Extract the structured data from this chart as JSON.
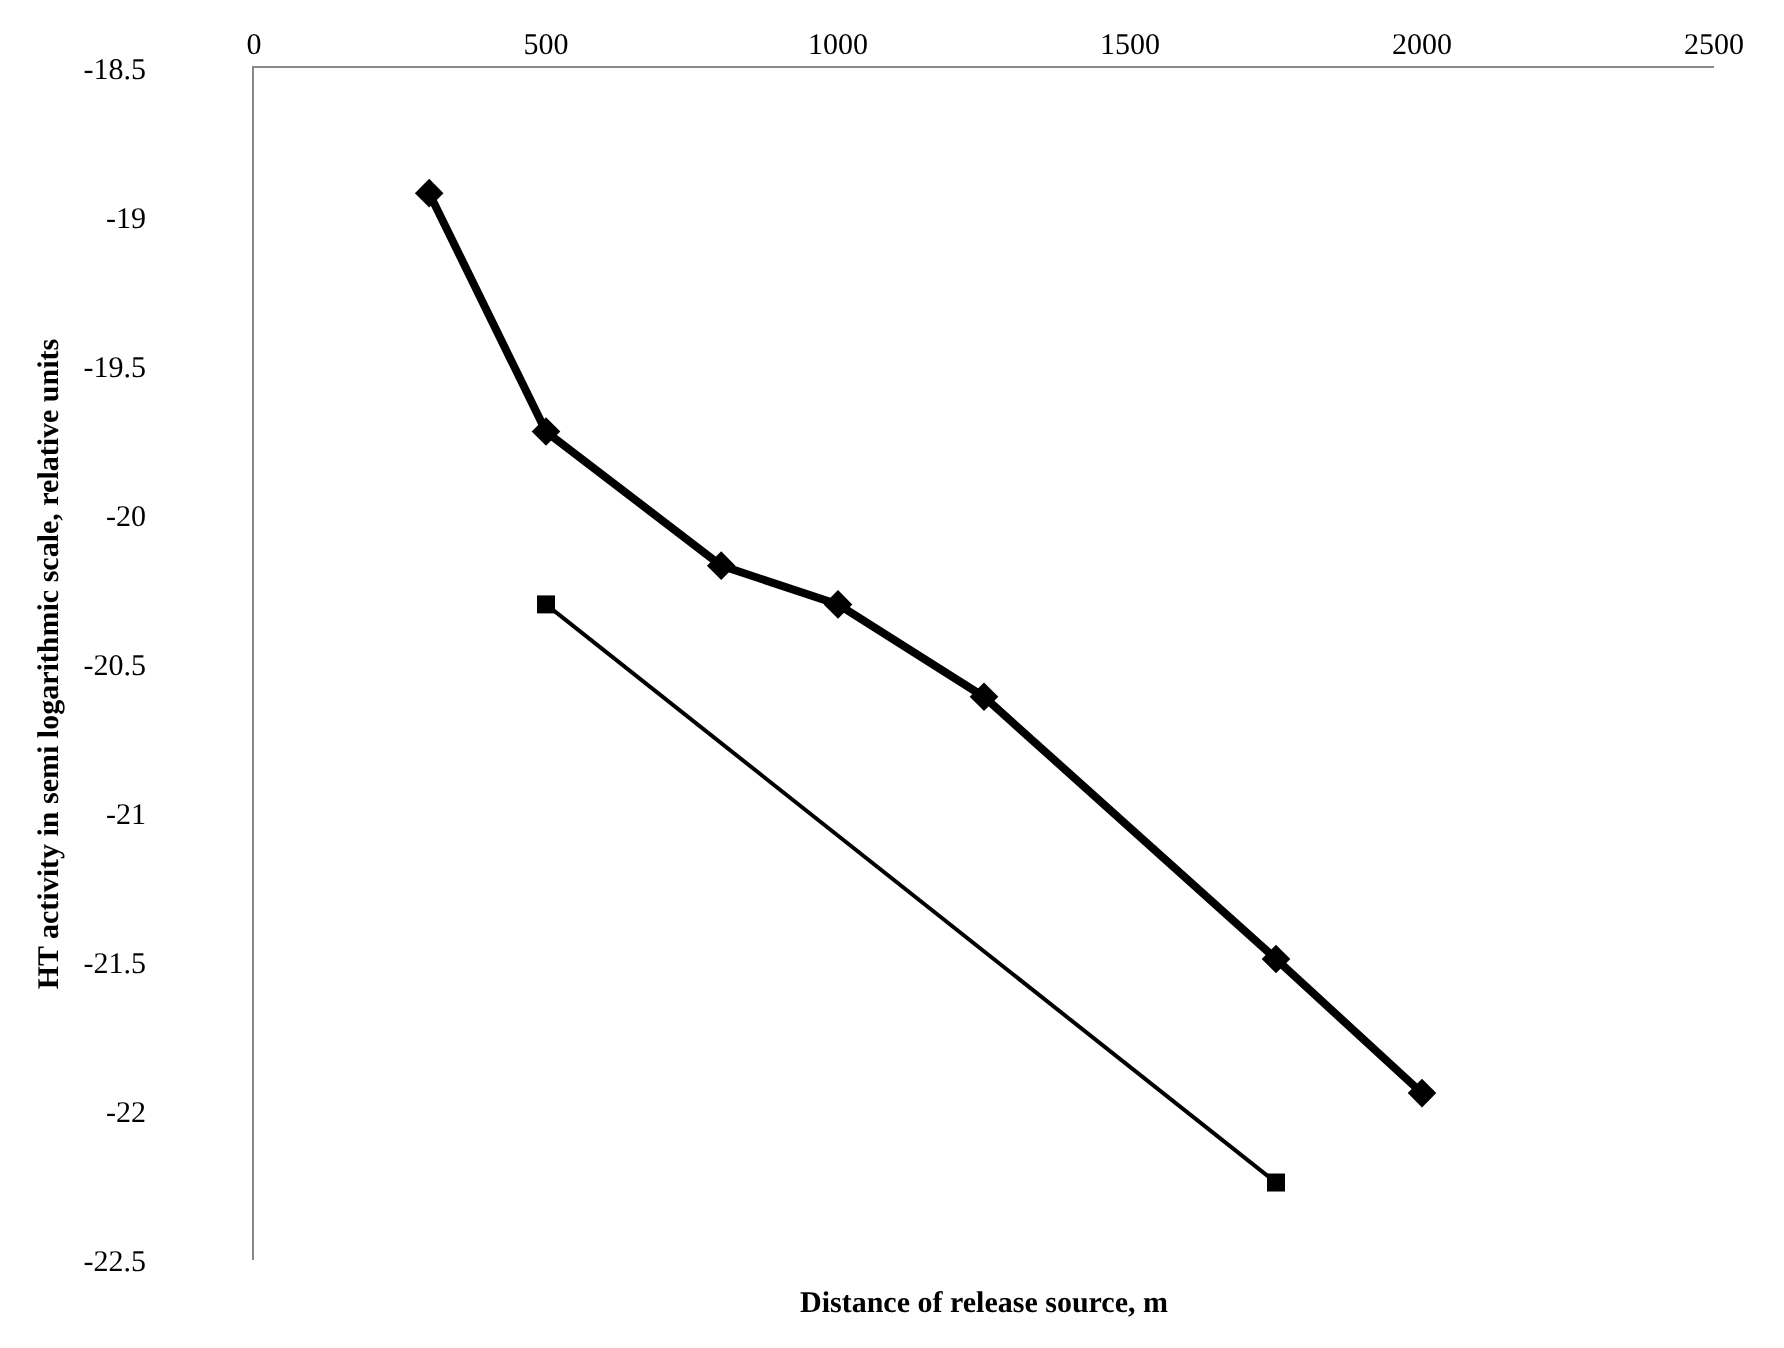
{
  "chart_data": {
    "type": "line",
    "xlabel": "Distance of release source, m",
    "ylabel": "HT activity in semi logarithmic scale, relative units",
    "xlim": [
      0,
      2500
    ],
    "xticks": [
      0,
      500,
      1000,
      1500,
      2000,
      2500
    ],
    "ylim": [
      -22.5,
      -18.5
    ],
    "yticks": [
      -18.5,
      -19,
      -19.5,
      -20,
      -20.5,
      -21,
      -21.5,
      -22,
      -22.5
    ],
    "grid": false,
    "line_style": "solid",
    "series": [
      {
        "color": "#000000",
        "marker": "diamond",
        "x": [
          300,
          500,
          800,
          1000,
          1250,
          1750,
          2000
        ],
        "values": [
          -18.92,
          -19.72,
          -20.17,
          -20.3,
          -20.61,
          -21.49,
          -21.94
        ]
      },
      {
        "color": "#000000",
        "marker": "square",
        "x": [
          500,
          1750
        ],
        "values": [
          -20.3,
          -22.24
        ]
      }
    ]
  }
}
